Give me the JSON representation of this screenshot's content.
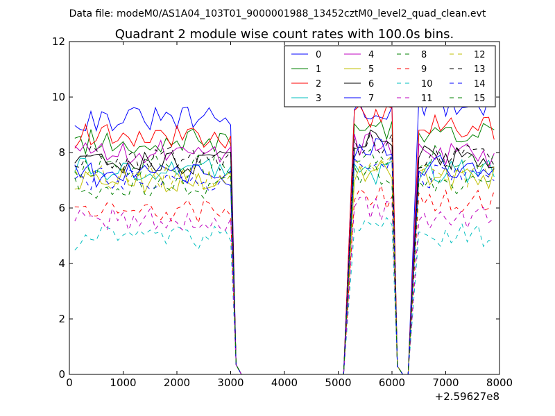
{
  "chart_data": {
    "type": "line",
    "suptitle": "Data file: modeM0/AS1A04_103T01_9000001988_13452cztM0_level2_quad_clean.evt",
    "title": "Quadrant 2 module wise count rates with 100.0s bins.",
    "xlabel": "",
    "ylabel": "",
    "x_offset_label": "+2.59627e8",
    "xlim": [
      0,
      8000
    ],
    "ylim": [
      0,
      12
    ],
    "xticks": [
      0,
      1000,
      2000,
      3000,
      4000,
      5000,
      6000,
      7000,
      8000
    ],
    "xtick_labels": [
      "0",
      "1000",
      "2000",
      "3000",
      "4000",
      "5000",
      "6000",
      "7000",
      "8000"
    ],
    "yticks": [
      0,
      2,
      4,
      6,
      8,
      10,
      12
    ],
    "ytick_labels": [
      "0",
      "2",
      "4",
      "6",
      "8",
      "10",
      "12"
    ],
    "grid": false,
    "legend_position": "top-right",
    "legend_columns": 4,
    "bin_step": 100,
    "segments": [
      {
        "start": 100,
        "end": 3000,
        "tail": [
          3100,
          0.35,
          3200,
          0
        ]
      },
      {
        "start": 5300,
        "end": 6000,
        "head": [
          5100,
          0
        ],
        "tail": [
          6100,
          0.3,
          6200,
          0
        ]
      },
      {
        "start": 6500,
        "end": 7900,
        "head": [
          6300,
          0
        ]
      }
    ],
    "series": [
      {
        "name": "0",
        "color": "#0000ff",
        "dash": "solid",
        "levels": [
          9.2,
          9.5,
          9.7
        ]
      },
      {
        "name": "1",
        "color": "#008000",
        "dash": "solid",
        "levels": [
          8.4,
          8.9,
          8.6
        ]
      },
      {
        "name": "2",
        "color": "#ff0000",
        "dash": "solid",
        "levels": [
          8.6,
          9.3,
          8.9
        ]
      },
      {
        "name": "3",
        "color": "#00bfbf",
        "dash": "solid",
        "levels": [
          7.4,
          7.3,
          7.3
        ]
      },
      {
        "name": "4",
        "color": "#bf00bf",
        "dash": "solid",
        "levels": [
          8.0,
          8.3,
          7.9
        ]
      },
      {
        "name": "5",
        "color": "#bfbf00",
        "dash": "solid",
        "levels": [
          7.0,
          7.4,
          7.1
        ]
      },
      {
        "name": "6",
        "color": "#000000",
        "dash": "solid",
        "levels": [
          7.6,
          8.5,
          7.8
        ]
      },
      {
        "name": "7",
        "color": "#0000ff",
        "dash": "solid",
        "levels": [
          7.2,
          8.1,
          7.5
        ]
      },
      {
        "name": "8",
        "color": "#008000",
        "dash": "dashed",
        "levels": [
          7.5,
          7.9,
          7.8
        ]
      },
      {
        "name": "9",
        "color": "#ff0000",
        "dash": "dashed",
        "levels": [
          5.9,
          6.4,
          6.2
        ]
      },
      {
        "name": "10",
        "color": "#00bfbf",
        "dash": "dashed",
        "levels": [
          4.9,
          5.3,
          5.0
        ]
      },
      {
        "name": "11",
        "color": "#bf00bf",
        "dash": "dashed",
        "levels": [
          5.6,
          6.0,
          5.6
        ]
      },
      {
        "name": "12",
        "color": "#bfbf00",
        "dash": "dashed",
        "levels": [
          7.1,
          7.6,
          7.2
        ]
      },
      {
        "name": "13",
        "color": "#000000",
        "dash": "dashed",
        "levels": [
          7.8,
          8.3,
          7.9
        ]
      },
      {
        "name": "14",
        "color": "#0000ff",
        "dash": "dashed",
        "levels": [
          7.0,
          7.5,
          7.1
        ]
      },
      {
        "name": "15",
        "color": "#008000",
        "dash": "dashed",
        "levels": [
          6.7,
          7.2,
          6.9
        ]
      }
    ]
  }
}
